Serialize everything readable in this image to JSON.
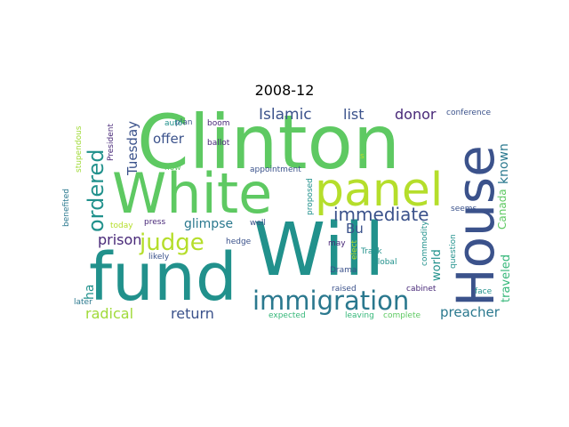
{
  "title": "2008-12",
  "words": [
    {
      "text": "Clinton",
      "color": "#5ec962"
    },
    {
      "text": "White",
      "color": "#5ec962"
    },
    {
      "text": "House",
      "color": "#3b528b"
    },
    {
      "text": "Will",
      "color": "#21918c"
    },
    {
      "text": "fund",
      "color": "#21918c"
    },
    {
      "text": "panel",
      "color": "#b5de2b"
    },
    {
      "text": "ordered",
      "color": "#21918c"
    },
    {
      "text": "immigration",
      "color": "#2a788e"
    },
    {
      "text": "immediate",
      "color": "#3b528b"
    },
    {
      "text": "judge",
      "color": "#b5de2b"
    },
    {
      "text": "Islamic",
      "color": "#3b528b"
    },
    {
      "text": "list",
      "color": "#3b528b"
    },
    {
      "text": "donor",
      "color": "#482878"
    },
    {
      "text": "Tuesday",
      "color": "#3b528b"
    },
    {
      "text": "offer",
      "color": "#3b528b"
    },
    {
      "text": "prison",
      "color": "#482878"
    },
    {
      "text": "glimpse",
      "color": "#2a788e"
    },
    {
      "text": "return",
      "color": "#3b528b"
    },
    {
      "text": "radical",
      "color": "#a0da39"
    },
    {
      "text": "preacher",
      "color": "#2a788e"
    },
    {
      "text": "known",
      "color": "#2a788e"
    },
    {
      "text": "Canada",
      "color": "#5ec962"
    },
    {
      "text": "traveled",
      "color": "#35b779"
    },
    {
      "text": "world",
      "color": "#21918c"
    },
    {
      "text": "Bu",
      "color": "#3b528b"
    },
    {
      "text": "ha",
      "color": "#21918c"
    },
    {
      "text": "conference",
      "color": "#3b528b"
    },
    {
      "text": "President",
      "color": "#482878"
    },
    {
      "text": "stupendous",
      "color": "#a0da39"
    },
    {
      "text": "benefited",
      "color": "#2a788e"
    },
    {
      "text": "appointment",
      "color": "#3b528b"
    },
    {
      "text": "proposed",
      "color": "#21918c"
    },
    {
      "text": "seems",
      "color": "#3b528b"
    },
    {
      "text": "question",
      "color": "#21918c"
    },
    {
      "text": "commodity",
      "color": "#21918c"
    },
    {
      "text": "plan",
      "color": "#3b528b"
    },
    {
      "text": "auto",
      "color": "#21918c"
    },
    {
      "text": "boom",
      "color": "#482878"
    },
    {
      "text": "ballot",
      "color": "#482878"
    },
    {
      "text": "now",
      "color": "#5ec962"
    },
    {
      "text": "today",
      "color": "#b5de2b"
    },
    {
      "text": "press",
      "color": "#482878"
    },
    {
      "text": "well",
      "color": "#3b528b"
    },
    {
      "text": "hedge",
      "color": "#3b528b"
    },
    {
      "text": "likely",
      "color": "#3b528b"
    },
    {
      "text": "may",
      "color": "#482878"
    },
    {
      "text": "elect",
      "color": "#b5de2b"
    },
    {
      "text": "Track",
      "color": "#21918c"
    },
    {
      "text": "global",
      "color": "#21918c"
    },
    {
      "text": "Drama",
      "color": "#3b528b"
    },
    {
      "text": "raised",
      "color": "#3b528b"
    },
    {
      "text": "cabinet",
      "color": "#482878"
    },
    {
      "text": "face",
      "color": "#21918c"
    },
    {
      "text": "later",
      "color": "#2a788e"
    },
    {
      "text": "expected",
      "color": "#35b779"
    },
    {
      "text": "leaving",
      "color": "#35b779"
    },
    {
      "text": "complete",
      "color": "#5ec962"
    },
    {
      "text": "s",
      "color": "#b5de2b"
    }
  ]
}
